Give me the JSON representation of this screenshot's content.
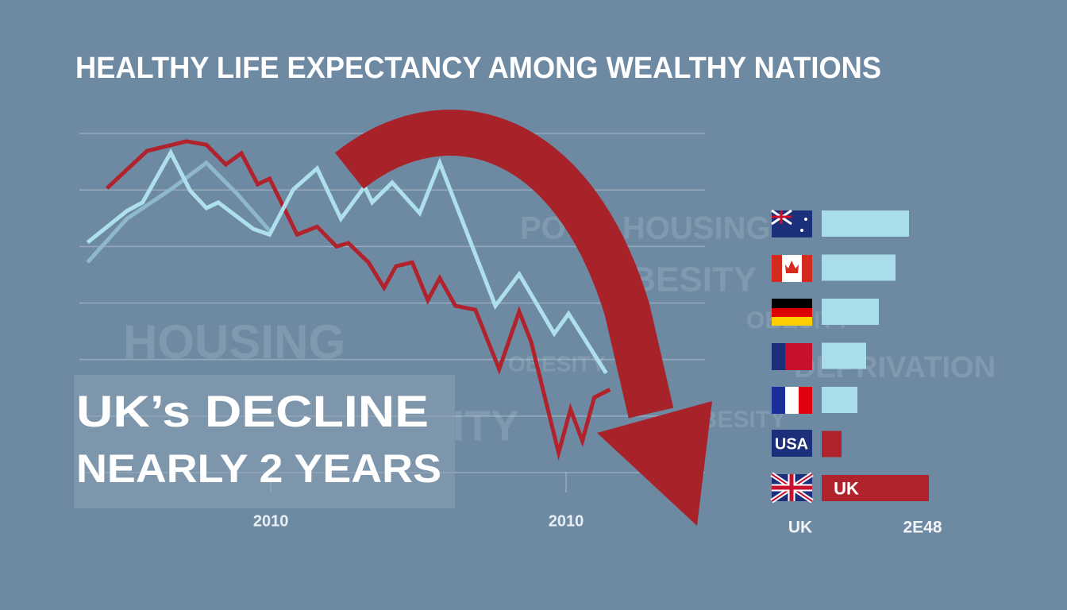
{
  "title": "HEALTHY LIFE EXPECTANCY AMONG WEALTHY NATIONS",
  "headline": [
    "UK’s DECLINE",
    "NEARLY 2 YEARS"
  ],
  "background_words": [
    "POOR HOUSING",
    "OBESITY",
    "OBESITY",
    "HOUSING",
    "DEPRIVATION",
    "ITY",
    "OBESITY",
    "HBESITY"
  ],
  "chart_data": [
    {
      "type": "line",
      "xlim": [
        0,
        100
      ],
      "ylim": [
        0,
        6
      ],
      "xticks": [
        {
          "value": 30.6,
          "label": "2010"
        },
        {
          "value": 77.8,
          "label": "2010"
        }
      ],
      "yticks": [
        0,
        1,
        2,
        3,
        4,
        5,
        6
      ],
      "grid": true,
      "series": [
        {
          "color": "#b0222c",
          "x": [
            4.4,
            10.8,
            17.1,
            20.3,
            23.4,
            25.9,
            28.5,
            30.4,
            34.8,
            38.0,
            41.1,
            43.0,
            46.2,
            48.7,
            50.6,
            53.2,
            55.7,
            57.6,
            60.1,
            63.3,
            67.1,
            70.3,
            72.2,
            76.6,
            78.5,
            80.4,
            82.3,
            84.8
          ],
          "values": [
            5.03,
            5.69,
            5.86,
            5.8,
            5.45,
            5.65,
            5.1,
            5.2,
            4.21,
            4.35,
            4.0,
            4.06,
            3.72,
            3.27,
            3.65,
            3.72,
            3.05,
            3.44,
            2.95,
            2.88,
            1.83,
            2.85,
            2.32,
            0.35,
            1.12,
            0.56,
            1.33,
            1.47
          ]
        },
        {
          "color": "#8fb8cc",
          "x": [
            1.3,
            7.6,
            14.6,
            20.3,
            25.3,
            30.4
          ],
          "values": [
            3.72,
            4.49,
            5.01,
            5.48,
            4.92,
            4.28
          ]
        },
        {
          "color": "#aee0ec",
          "x": [
            1.3,
            7.6,
            10.1,
            14.6,
            17.7,
            20.3,
            22.2,
            27.8,
            30.4,
            34.2,
            38.0,
            41.8,
            45.6,
            46.8,
            50.0,
            54.4,
            57.6,
            66.5,
            70.3,
            75.9,
            78.2,
            81.0,
            84.2
          ],
          "values": [
            4.07,
            4.63,
            4.78,
            5.66,
            4.99,
            4.68,
            4.78,
            4.31,
            4.21,
            5.01,
            5.38,
            4.49,
            5.06,
            4.78,
            5.13,
            4.59,
            5.48,
            2.95,
            3.51,
            2.46,
            2.81,
            2.32,
            1.76
          ]
        }
      ]
    },
    {
      "type": "hbar",
      "categories": [
        null,
        null,
        null,
        null,
        null,
        "USA",
        null
      ],
      "values": [
        110,
        93,
        72,
        56,
        45,
        25,
        135
      ],
      "value_labels": [
        null,
        null,
        null,
        null,
        null,
        null,
        "UK"
      ],
      "colors": [
        "#a8dde9",
        "#a8dde9",
        "#a8dde9",
        "#a8dde9",
        "#a8dde9",
        "#b0222c",
        "#b0222c"
      ],
      "xlim": [
        0,
        150
      ],
      "footer_labels": [
        "UK",
        "2E48"
      ]
    }
  ]
}
